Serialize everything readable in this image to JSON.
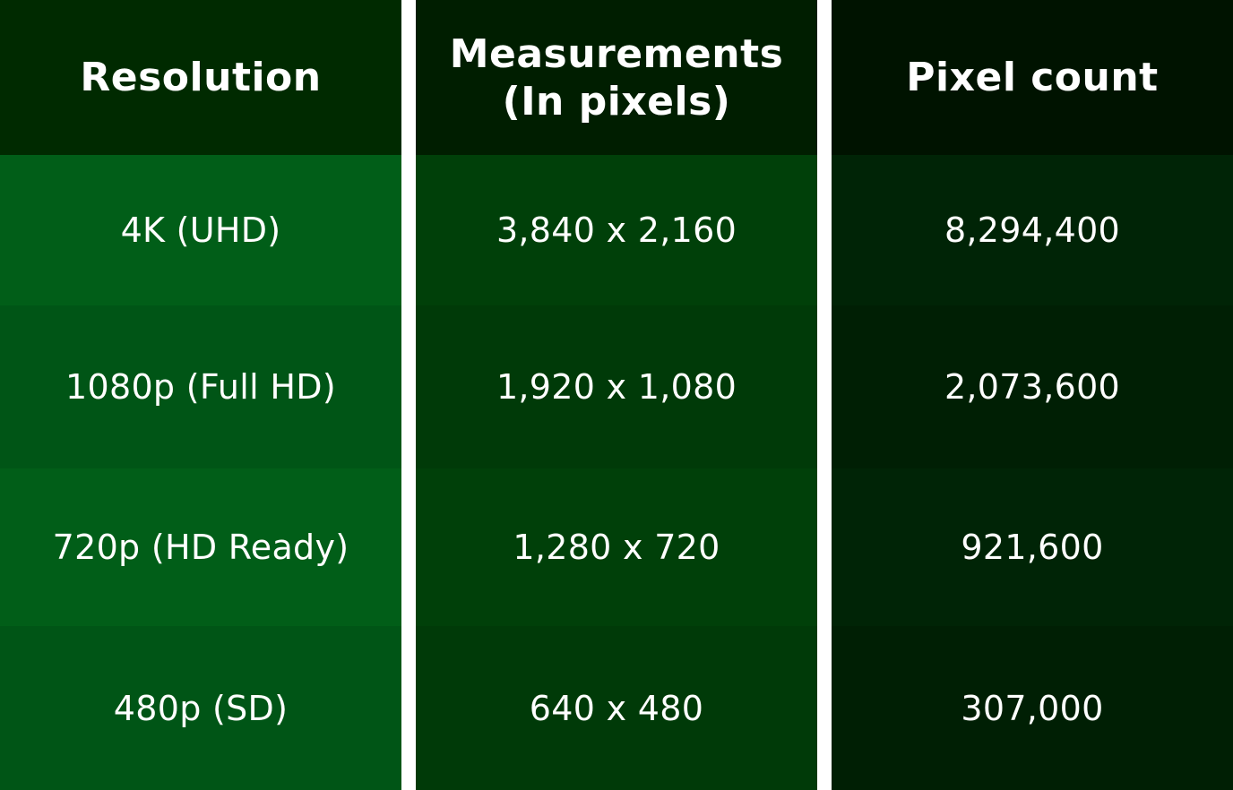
{
  "chart_data": {
    "type": "table",
    "columns": [
      "Resolution",
      "Measurements\n(In pixels)",
      "Pixel count"
    ],
    "rows": [
      [
        "4K (UHD)",
        "3,840 x 2,160",
        "8,294,400"
      ],
      [
        "1080p (Full HD)",
        "1,920 x 1,080",
        "2,073,600"
      ],
      [
        "720p (HD Ready)",
        "1,280 x 720",
        "921,600"
      ],
      [
        "480p (SD)",
        "640 x 480",
        "307,000"
      ]
    ]
  },
  "colors": {
    "col1": {
      "header": "#002a00",
      "rows": [
        "#015e18",
        "#005516",
        "#015e18",
        "#005516"
      ]
    },
    "col2": {
      "header": "#001e00",
      "rows": [
        "#004009",
        "#003a08",
        "#004009",
        "#003a08"
      ]
    },
    "col3": {
      "header": "#001300",
      "rows": [
        "#002406",
        "#001f04",
        "#002406",
        "#001f04"
      ]
    },
    "text": "#ffffff",
    "separator": "#ffffff"
  }
}
